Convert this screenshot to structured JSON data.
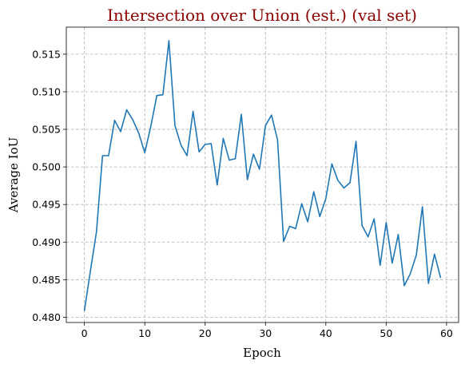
{
  "chart_data": {
    "type": "line",
    "title": "Intersection over Union (est.) (val set)",
    "xlabel": "Epoch",
    "ylabel": "Average IoU",
    "xlim": [
      -3,
      62
    ],
    "ylim": [
      0.4793,
      0.5186
    ],
    "x_ticks": [
      0,
      10,
      20,
      30,
      40,
      50,
      60
    ],
    "y_ticks": [
      0.48,
      0.485,
      0.49,
      0.495,
      0.5,
      0.505,
      0.51,
      0.515
    ],
    "grid": true,
    "series": [
      {
        "color": "#1f77b4",
        "x": [
          0,
          1,
          2,
          3,
          4,
          5,
          6,
          7,
          8,
          9,
          10,
          11,
          12,
          13,
          14,
          15,
          16,
          17,
          18,
          19,
          20,
          21,
          22,
          23,
          24,
          25,
          26,
          27,
          28,
          29,
          30,
          31,
          32,
          33,
          34,
          35,
          36,
          37,
          38,
          39,
          40,
          41,
          42,
          43,
          44,
          45,
          46,
          47,
          48,
          49,
          50,
          51,
          52,
          53,
          54,
          55,
          56,
          57,
          58,
          59
        ],
        "values": [
          0.4809,
          0.4862,
          0.4914,
          0.5015,
          0.5015,
          0.5062,
          0.5047,
          0.5076,
          0.5063,
          0.5045,
          0.5019,
          0.5054,
          0.5095,
          0.5096,
          0.5168,
          0.5055,
          0.5029,
          0.5015,
          0.5074,
          0.502,
          0.503,
          0.5031,
          0.4976,
          0.5038,
          0.5009,
          0.5011,
          0.507,
          0.4983,
          0.5017,
          0.4997,
          0.5055,
          0.5069,
          0.5036,
          0.4901,
          0.4921,
          0.4918,
          0.4951,
          0.4927,
          0.4967,
          0.4934,
          0.4958,
          0.5004,
          0.4982,
          0.4972,
          0.4979,
          0.5034,
          0.4922,
          0.4907,
          0.4931,
          0.4869,
          0.4926,
          0.4872,
          0.491,
          0.4842,
          0.4858,
          0.4883,
          0.4947,
          0.4845,
          0.4884,
          0.4853
        ]
      }
    ]
  }
}
